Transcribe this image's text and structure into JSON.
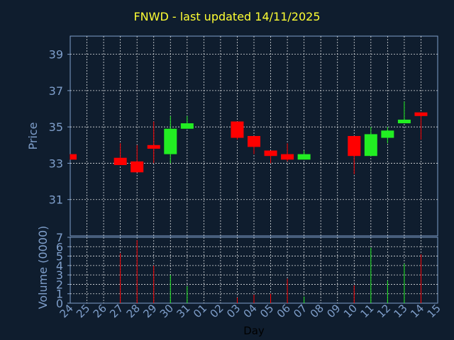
{
  "chart_data": {
    "type": "candlestick",
    "title": "FNWD - last updated 14/11/2025",
    "xlabel": "Day",
    "price_axis": {
      "label": "Price",
      "ylim": [
        29,
        40
      ],
      "ticks": [
        31,
        33,
        35,
        37,
        39
      ]
    },
    "volume_axis": {
      "label": "Volume (0000)",
      "ylim": [
        0,
        7
      ],
      "ticks": [
        0,
        1,
        2,
        3,
        4,
        5,
        6,
        7
      ]
    },
    "grid": true,
    "x_ticks": [
      "24",
      "25",
      "26",
      "27",
      "28",
      "29",
      "30",
      "31",
      "01",
      "02",
      "03",
      "04",
      "05",
      "06",
      "07",
      "08",
      "09",
      "10",
      "11",
      "12",
      "13",
      "14",
      "15"
    ],
    "colors": {
      "up": "#22ee22",
      "down": "#ff0000",
      "background": "#0f1d2e",
      "axis": "#7f9fcb",
      "title": "#ffff33"
    },
    "candles": [
      {
        "day": "24",
        "open": 33.5,
        "high": 33.5,
        "low": 33.2,
        "close": 33.2,
        "volume": 0.0
      },
      {
        "day": "27",
        "open": 33.3,
        "high": 34.1,
        "low": 32.9,
        "close": 32.9,
        "volume": 5.3
      },
      {
        "day": "28",
        "open": 33.1,
        "high": 34.0,
        "low": 32.5,
        "close": 32.5,
        "volume": 6.7
      },
      {
        "day": "29",
        "open": 34.0,
        "high": 35.3,
        "low": 33.0,
        "close": 33.8,
        "volume": 4.0
      },
      {
        "day": "30",
        "open": 33.5,
        "high": 35.6,
        "low": 33.0,
        "close": 34.9,
        "volume": 3.0
      },
      {
        "day": "31",
        "open": 34.9,
        "high": 35.6,
        "low": 34.9,
        "close": 35.2,
        "volume": 1.8
      },
      {
        "day": "03",
        "open": 35.3,
        "high": 35.3,
        "low": 34.3,
        "close": 34.4,
        "volume": 0.6
      },
      {
        "day": "04",
        "open": 34.5,
        "high": 34.5,
        "low": 33.5,
        "close": 33.9,
        "volume": 0.9
      },
      {
        "day": "05",
        "open": 33.7,
        "high": 33.7,
        "low": 33.0,
        "close": 33.4,
        "volume": 1.0
      },
      {
        "day": "06",
        "open": 33.5,
        "high": 34.1,
        "low": 33.1,
        "close": 33.2,
        "volume": 2.6
      },
      {
        "day": "07",
        "open": 33.2,
        "high": 33.7,
        "low": 33.2,
        "close": 33.5,
        "volume": 0.7
      },
      {
        "day": "10",
        "open": 34.5,
        "high": 34.5,
        "low": 32.4,
        "close": 33.4,
        "volume": 1.9
      },
      {
        "day": "11",
        "open": 33.4,
        "high": 35.0,
        "low": 33.4,
        "close": 34.6,
        "volume": 5.9
      },
      {
        "day": "12",
        "open": 34.4,
        "high": 35.0,
        "low": 34.1,
        "close": 34.8,
        "volume": 2.4
      },
      {
        "day": "13",
        "open": 35.2,
        "high": 36.4,
        "low": 35.2,
        "close": 35.4,
        "volume": 4.2
      },
      {
        "day": "14",
        "open": 35.8,
        "high": 35.8,
        "low": 34.3,
        "close": 35.6,
        "volume": 5.2
      }
    ]
  }
}
